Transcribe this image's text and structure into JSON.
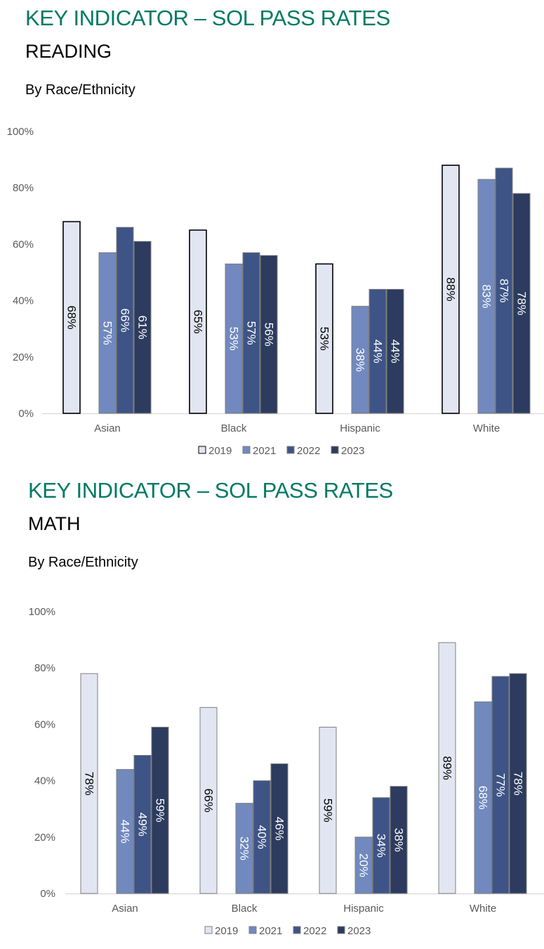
{
  "charts": [
    {
      "kicker": "KEY INDICATOR – SOL PASS RATES",
      "subject": "READING",
      "subtitle": "By Race/Ethnicity"
    },
    {
      "kicker": "KEY INDICATOR – SOL PASS RATES",
      "subject": "MATH",
      "subtitle": "By Race/Ethnicity"
    }
  ],
  "colors": {
    "title": "#007a63",
    "2019": "#e2e6f2",
    "2021": "#7189be",
    "2022": "#3e5486",
    "2023": "#2c3b5e"
  },
  "chart_data": [
    {
      "type": "bar",
      "title": "READING",
      "categories": [
        "Asian",
        "Black",
        "Hispanic",
        "White"
      ],
      "series": [
        {
          "name": "2019",
          "values": [
            68,
            65,
            53,
            88
          ]
        },
        {
          "name": "2021",
          "values": [
            57,
            53,
            38,
            83
          ]
        },
        {
          "name": "2022",
          "values": [
            66,
            57,
            44,
            87
          ]
        },
        {
          "name": "2023",
          "values": [
            61,
            56,
            44,
            78
          ]
        }
      ],
      "ylim": [
        0,
        100
      ],
      "yticks": [
        "0%",
        "20%",
        "40%",
        "60%",
        "80%",
        "100%"
      ],
      "legend": "bottom",
      "grid": false
    },
    {
      "type": "bar",
      "title": "MATH",
      "categories": [
        "Asian",
        "Black",
        "Hispanic",
        "White"
      ],
      "series": [
        {
          "name": "2019",
          "values": [
            78,
            66,
            59,
            89
          ]
        },
        {
          "name": "2021",
          "values": [
            44,
            32,
            20,
            68
          ]
        },
        {
          "name": "2022",
          "values": [
            49,
            40,
            34,
            77
          ]
        },
        {
          "name": "2023",
          "values": [
            59,
            46,
            38,
            78
          ]
        }
      ],
      "ylim": [
        0,
        100
      ],
      "yticks": [
        "0%",
        "20%",
        "40%",
        "60%",
        "80%",
        "100%"
      ],
      "legend": "bottom",
      "grid": false
    }
  ]
}
